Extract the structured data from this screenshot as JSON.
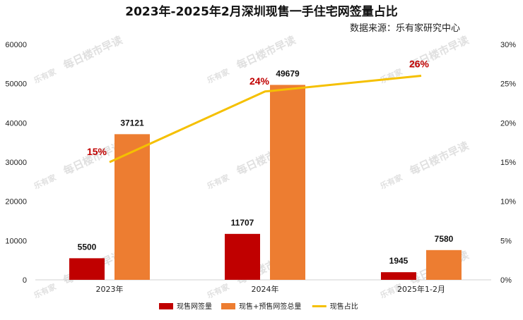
{
  "header": {
    "title": "2023年-2025年2月深圳现售一手住宅网签量占比",
    "source": "数据来源：乐有家研究中心"
  },
  "watermark": {
    "text": "每日楼市早读",
    "logo": "乐有家"
  },
  "colors": {
    "spot": "#c00000",
    "total": "#ed7d31",
    "ratio": "#f5c000",
    "ratio_label": "#c00000"
  },
  "chart_data": {
    "type": "bar",
    "title": "2023年-2025年2月深圳现售一手住宅网签量占比",
    "categories": [
      "2023年",
      "2024年",
      "2025年1-2月"
    ],
    "series": [
      {
        "name": "现售网签量",
        "type": "bar",
        "axis": "left",
        "values": [
          5500,
          11707,
          1945
        ]
      },
      {
        "name": "现售+预售网签总量",
        "type": "bar",
        "axis": "left",
        "values": [
          37121,
          49679,
          7580
        ]
      },
      {
        "name": "现售占比",
        "type": "line",
        "axis": "right",
        "values": [
          15,
          24,
          26
        ],
        "labels": [
          "15%",
          "24%",
          "26%"
        ]
      }
    ],
    "y_left": {
      "range": [
        0,
        60000
      ],
      "ticks": [
        "0",
        "10000",
        "20000",
        "30000",
        "40000",
        "50000",
        "60000"
      ]
    },
    "y_right": {
      "range": [
        0,
        30
      ],
      "ticks": [
        "0%",
        "5%",
        "10%",
        "15%",
        "20%",
        "25%",
        "30%"
      ]
    },
    "legend_position": "bottom",
    "grid": false
  }
}
